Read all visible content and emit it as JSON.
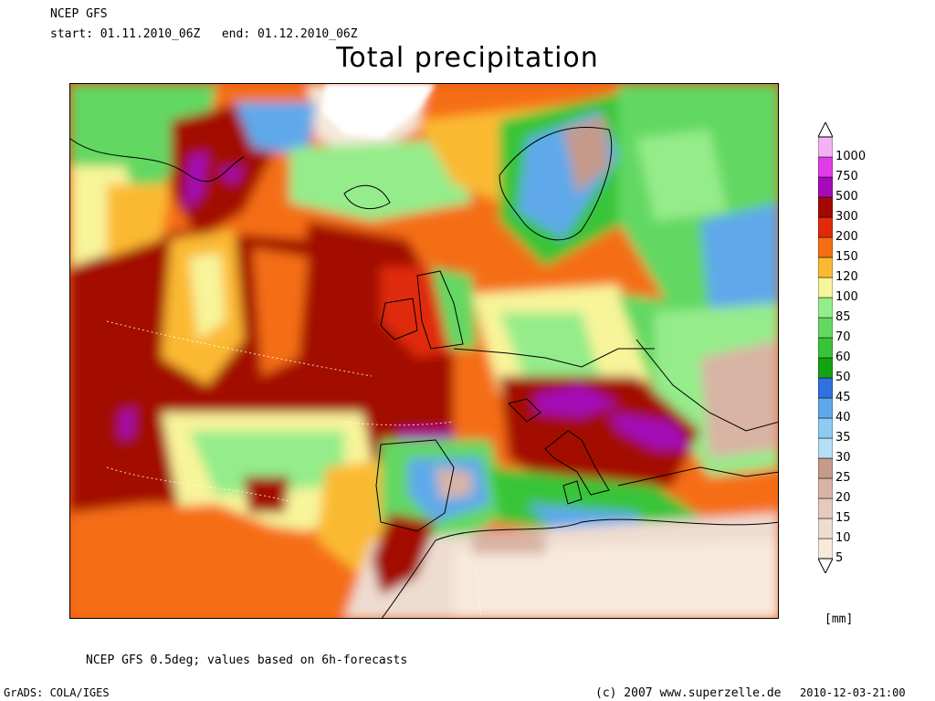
{
  "header": {
    "model": "NCEP GFS",
    "period": "start: 01.11.2010_06Z   end: 01.12.2010_06Z",
    "title": "Total precipitation"
  },
  "legend": {
    "units": "[mm]",
    "levels": [
      "5",
      "10",
      "15",
      "20",
      "25",
      "30",
      "35",
      "40",
      "45",
      "50",
      "60",
      "70",
      "85",
      "100",
      "120",
      "150",
      "200",
      "300",
      "500",
      "750",
      "1000"
    ],
    "colors": [
      "#f7e9dc",
      "#efdcd0",
      "#e6cabd",
      "#d8b4a4",
      "#c69a8a",
      "#b6def4",
      "#8ecbf0",
      "#5fa9ea",
      "#2f72de",
      "#12a212",
      "#38c438",
      "#62d862",
      "#95ec8a",
      "#f8f49a",
      "#fbb933",
      "#f56e14",
      "#e02a0a",
      "#a30805",
      "#a40ab8",
      "#e23ce8",
      "#f4b2f4"
    ]
  },
  "footer": {
    "note": "NCEP GFS 0.5deg; values based on 6h-forecasts",
    "grads": "GrADS: COLA/IGES",
    "copyright": "(c) 2007 www.superzelle.de",
    "timestamp": "2010-12-03-21:00"
  }
}
